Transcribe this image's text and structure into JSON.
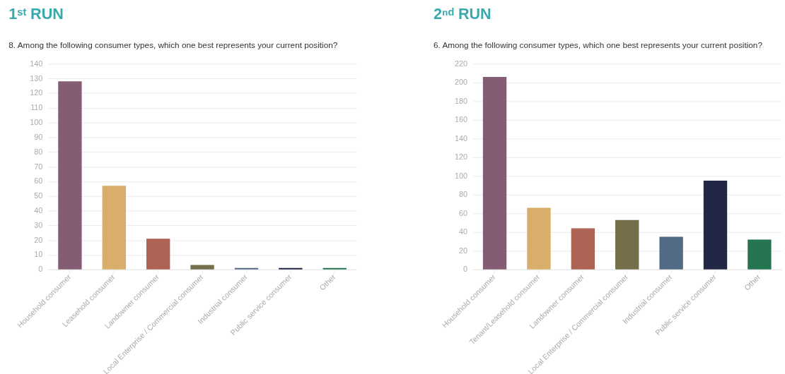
{
  "chart_data": [
    {
      "type": "bar",
      "title": "1ˢᵗ RUN",
      "subtitle": "8. Among the following consumer types, which one best represents your current position?",
      "categories": [
        "Household consumer",
        "Leasehold consumer",
        "Landowner consumer",
        "Local Enterprise / Commercial consumer",
        "Industrial consumer",
        "Public service consumer",
        "Other"
      ],
      "values": [
        128,
        57,
        21,
        3,
        1,
        1,
        1
      ],
      "colors": [
        "#845c74",
        "#d9ad6a",
        "#ad6455",
        "#746e4a",
        "#536a85",
        "#212745",
        "#257650"
      ],
      "ylim": [
        0,
        140
      ],
      "yticks": [
        0,
        10,
        20,
        30,
        40,
        50,
        60,
        70,
        80,
        90,
        100,
        110,
        120,
        130,
        140
      ],
      "grid": "y"
    },
    {
      "type": "bar",
      "title": "2ⁿᵈ RUN",
      "subtitle": "6. Among the following consumer types, which one best represents your current position?",
      "categories": [
        "Household consumer",
        "Tenant/Leasehold consumer",
        "Landowner consumer",
        "Local Enterprise / Commercial consumer",
        "Industrial consumer",
        "Public service consumer",
        "Other"
      ],
      "values": [
        206,
        66,
        44,
        53,
        35,
        95,
        32
      ],
      "colors": [
        "#845c74",
        "#d9ad6a",
        "#ad6455",
        "#746e4a",
        "#536a85",
        "#212745",
        "#257650"
      ],
      "ylim": [
        0,
        220
      ],
      "yticks": [
        0,
        20,
        40,
        60,
        80,
        100,
        120,
        140,
        160,
        180,
        200,
        220
      ],
      "grid": "y"
    }
  ]
}
